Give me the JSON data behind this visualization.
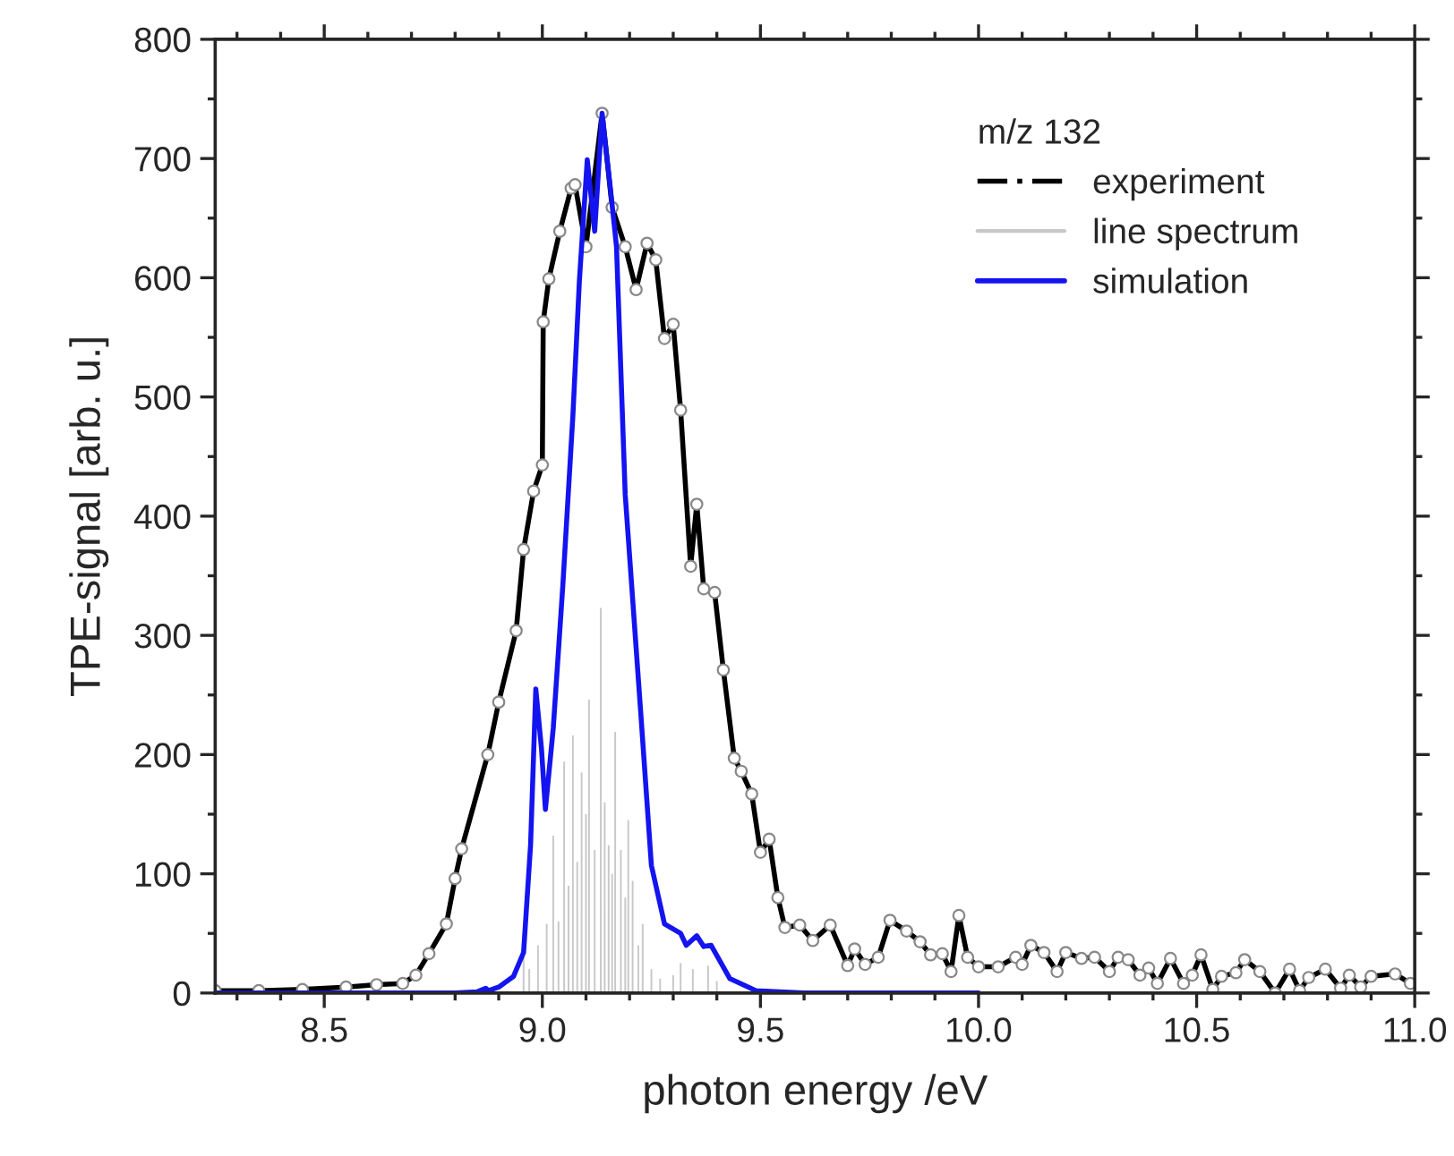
{
  "chart_data": {
    "type": "line",
    "xlabel": "photon energy /eV",
    "ylabel": "TPE-signal [arb. u.]",
    "legend_title": "m/z 132",
    "legend": "top right",
    "grid": false,
    "xlim": [
      8.25,
      11.0
    ],
    "xticks": [
      8.5,
      {
        "value": 9,
        "label": "9.0"
      },
      9.5,
      {
        "value": 10,
        "label": "10.0"
      },
      10.5,
      {
        "value": 11,
        "label": "11.0"
      }
    ],
    "ylim": [
      0,
      800
    ],
    "yticks": [
      0,
      100,
      200,
      300,
      400,
      500,
      600,
      700,
      800
    ],
    "series": [
      {
        "name": "experiment",
        "color": "#000000",
        "marker": "circle",
        "line_style": "solid",
        "x": [
          8.25,
          8.35,
          8.45,
          8.55,
          8.62,
          8.68,
          8.71,
          8.74,
          8.78,
          8.8,
          8.815,
          8.875,
          8.9,
          8.94,
          8.957,
          8.98,
          9.0,
          9.002,
          9.015,
          9.04,
          9.066,
          9.075,
          9.1,
          9.137,
          9.16,
          9.19,
          9.215,
          9.24,
          9.26,
          9.28,
          9.3,
          9.317,
          9.34,
          9.354,
          9.37,
          9.395,
          9.415,
          9.44,
          9.456,
          9.48,
          9.5,
          9.52,
          9.54,
          9.556,
          9.59,
          9.62,
          9.66,
          9.7,
          9.716,
          9.74,
          9.77,
          9.797,
          9.835,
          9.866,
          9.89,
          9.917,
          9.937,
          9.955,
          9.975,
          10.0,
          10.045,
          10.085,
          10.1,
          10.12,
          10.15,
          10.18,
          10.2,
          10.236,
          10.266,
          10.3,
          10.32,
          10.343,
          10.37,
          10.39,
          10.41,
          10.44,
          10.47,
          10.49,
          10.51,
          10.537,
          10.557,
          10.59,
          10.61,
          10.645,
          10.68,
          10.713,
          10.736,
          10.757,
          10.795,
          10.83,
          10.85,
          10.876,
          10.9,
          10.955,
          10.99
        ],
        "values": [
          2,
          2,
          3,
          5,
          7,
          8,
          15,
          33,
          58,
          96,
          121,
          200,
          244,
          304,
          372,
          421,
          443,
          563,
          599,
          639,
          675,
          678,
          626,
          738,
          659,
          626,
          590,
          629,
          615,
          549,
          561,
          489,
          358,
          410,
          339,
          336,
          271,
          197,
          186,
          167,
          118,
          129,
          80,
          55,
          57,
          44,
          57,
          23,
          37,
          24,
          30,
          61,
          52,
          43,
          32,
          33,
          18,
          65,
          30,
          22,
          22,
          30,
          24,
          40,
          34,
          18,
          34,
          29,
          30,
          18,
          30,
          28,
          15,
          21,
          8,
          29,
          8,
          15,
          32,
          3,
          14,
          17,
          28,
          18,
          0,
          20,
          2,
          13,
          20,
          4,
          15,
          5,
          14,
          16,
          8
        ]
      },
      {
        "name": "line spectrum",
        "type": "bar",
        "color": "#c8c8c8",
        "x": [
          8.957,
          8.97,
          8.99,
          9.01,
          9.025,
          9.037,
          9.05,
          9.06,
          9.07,
          9.08,
          9.09,
          9.1,
          9.107,
          9.12,
          9.134,
          9.143,
          9.152,
          9.16,
          9.167,
          9.18,
          9.19,
          9.197,
          9.207,
          9.22,
          9.23,
          9.25,
          9.27,
          9.3,
          9.317,
          9.345,
          9.38,
          9.4
        ],
        "values": [
          33,
          20,
          40,
          58,
          132,
          60,
          194,
          90,
          216,
          110,
          185,
          150,
          246,
          120,
          323,
          160,
          124,
          100,
          219,
          120,
          80,
          145,
          94,
          40,
          58,
          20,
          12,
          15,
          25,
          20,
          23,
          10
        ]
      },
      {
        "name": "simulation",
        "color": "#1414f0",
        "marker": "none",
        "line_style": "solid",
        "x": [
          8.25,
          8.5,
          8.8,
          8.85,
          8.87,
          8.877,
          8.9,
          8.934,
          8.957,
          8.973,
          8.985,
          8.998,
          9.007,
          9.025,
          9.047,
          9.07,
          9.085,
          9.103,
          9.12,
          9.137,
          9.156,
          9.17,
          9.19,
          9.226,
          9.25,
          9.28,
          9.317,
          9.33,
          9.354,
          9.37,
          9.387,
          9.43,
          9.49,
          9.6,
          9.8,
          10.0
        ],
        "values": [
          0,
          0,
          0,
          1,
          4,
          2,
          5,
          14,
          34,
          124,
          255,
          205,
          154,
          222,
          342,
          484,
          598,
          699,
          639,
          738,
          675,
          626,
          418,
          233,
          107,
          58,
          50,
          40,
          48,
          39,
          40,
          12,
          2,
          0,
          0,
          0
        ]
      }
    ]
  }
}
